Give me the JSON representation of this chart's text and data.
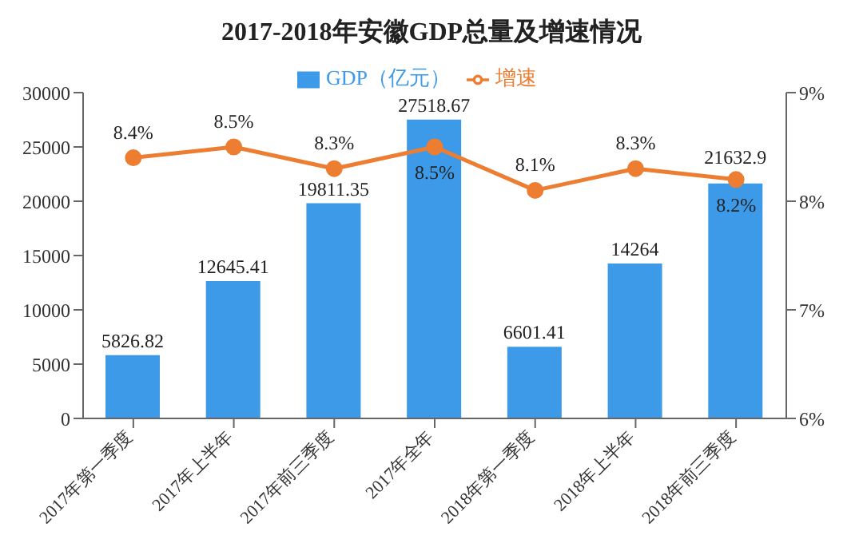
{
  "chart_data": {
    "type": "bar",
    "title": "2017-2018年安徽GDP总量及增速情况",
    "categories": [
      "2017年第一季度",
      "2017年上半年",
      "2017年前三季度",
      "2017年全年",
      "2018年第一季度",
      "2018年上半年",
      "2018年前三季度"
    ],
    "series": [
      {
        "name": "GDP（亿元）",
        "color": "#3d9ae8",
        "values": [
          5826.82,
          12645.41,
          19811.35,
          27518.67,
          6601.41,
          14264,
          21632.9
        ],
        "value_labels": [
          "5826.82",
          "12645.41",
          "19811.35",
          "27518.67",
          "6601.41",
          "14264",
          "21632.9"
        ]
      },
      {
        "name": "增速",
        "type": "line",
        "axis": "y2",
        "color": "#ed7d31",
        "values": [
          8.4,
          8.5,
          8.3,
          8.5,
          8.1,
          8.3,
          8.2
        ],
        "value_labels": [
          "8.4%",
          "8.5%",
          "8.3%",
          "8.5%",
          "8.1%",
          "8.3%",
          "8.2%"
        ]
      }
    ],
    "ylim": [
      0,
      30000
    ],
    "yticks": [
      0,
      5000,
      10000,
      15000,
      20000,
      25000,
      30000
    ],
    "y2lim": [
      6,
      9
    ],
    "y2ticks": [
      {
        "value": 6,
        "label": "6%"
      },
      {
        "value": 7,
        "label": "7%"
      },
      {
        "value": 8,
        "label": "8%"
      },
      {
        "value": 9,
        "label": "9%"
      }
    ],
    "grid": false,
    "legend": "top",
    "marker": "circle",
    "line_style": "solid"
  }
}
